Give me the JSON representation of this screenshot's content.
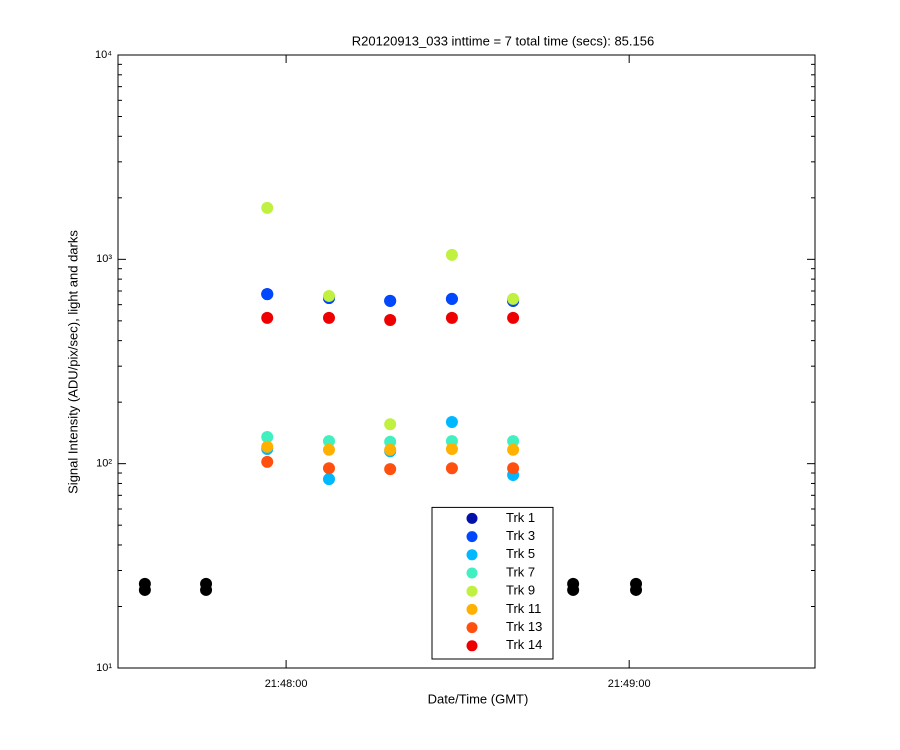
{
  "chart_data": {
    "type": "scatter",
    "title": "R20120913_033 inttime = 7 total time (secs): 85.156",
    "x_label": "Date/Time (GMT)",
    "y_label": "Signal Intensity (ADU/pix/sec), light and darks",
    "log_y": true,
    "xlim": [
      "21:47:30.6",
      "21:49:32.5"
    ],
    "xticks": [
      "21:48:00",
      "21:49:00"
    ],
    "ylim": [
      10,
      10000
    ],
    "yticks": [
      {
        "value": 10,
        "label": "10¹"
      },
      {
        "value": 100,
        "label": "10²"
      },
      {
        "value": 1000,
        "label": "10³"
      },
      {
        "value": 10000,
        "label": "10⁴"
      }
    ],
    "legend": "bottom-center",
    "x": [
      "21:47:56.7",
      "21:48:07.5",
      "21:48:18.2",
      "21:48:29",
      "21:48:39.7"
    ],
    "series": [
      {
        "name": "Trk 1",
        "color": "#0010a8",
        "values": [
          676,
          647,
          626,
          640,
          626
        ]
      },
      {
        "name": "Trk 3",
        "color": "#0048ff",
        "values": [
          676,
          647,
          626,
          640,
          626
        ]
      },
      {
        "name": "Trk 5",
        "color": "#00b8ff",
        "values": [
          118,
          84,
          115,
          160,
          88
        ]
      },
      {
        "name": "Trk 7",
        "color": "#40f0c0",
        "values": [
          135,
          129,
          128,
          129,
          129
        ]
      },
      {
        "name": "Trk 9",
        "color": "#c0f040",
        "values": [
          1786,
          662,
          156,
          1052,
          640
        ]
      },
      {
        "name": "Trk 11",
        "color": "#ffb000",
        "values": [
          121,
          117,
          117,
          118,
          117
        ]
      },
      {
        "name": "Trk 13",
        "color": "#ff5010",
        "values": [
          102,
          95,
          94,
          95,
          95
        ]
      },
      {
        "name": "Trk 14",
        "color": "#ee0000",
        "values": [
          517,
          517,
          505,
          517,
          517
        ]
      }
    ],
    "darks": {
      "color": "#000000",
      "x": [
        "21:47:35.3",
        "21:47:35.3",
        "21:47:46",
        "21:47:46",
        "21:48:50.2",
        "21:48:50.2",
        "21:49:01.2",
        "21:49:01.2"
      ],
      "values": [
        25.8,
        24.1,
        25.8,
        24.1,
        25.8,
        24.1,
        25.8,
        24.1
      ]
    }
  }
}
